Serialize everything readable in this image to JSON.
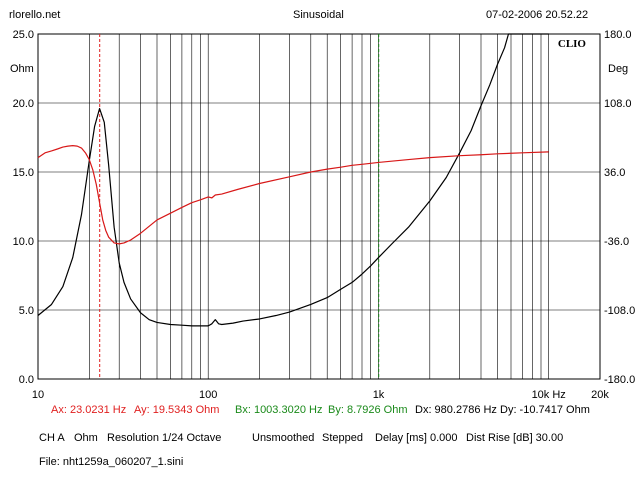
{
  "header": {
    "site": "rlorello.net",
    "mode": "Sinusoidal",
    "datetime": "07-02-2006 20.52.22"
  },
  "logo": "CLIO",
  "units": {
    "left": "Ohm",
    "right": "Deg"
  },
  "readouts": {
    "ax": "Ax: 23.0231 Hz",
    "ay": "Ay: 19.5343 Ohm",
    "bx": "Bx: 1003.3020 Hz",
    "by": "By: 8.7926 Ohm",
    "dx": "Dx: 980.2786 Hz",
    "dy": "Dy: -10.7417 Ohm"
  },
  "settings": {
    "channel": "CH A",
    "unit": "Ohm",
    "resolution": "Resolution 1/24 Octave",
    "smoothing": "Unsmoothed",
    "stepping": "Stepped",
    "delay": "Delay [ms] 0.000",
    "dist_rise": "Dist Rise [dB] 30.00"
  },
  "file": "File: nht1259a_060207_1.sini",
  "colors": {
    "impedance": "#000000",
    "phase": "#d81818",
    "cursor_a": "#e02020",
    "cursor_b": "#1a8a1a",
    "grid": "#000000"
  },
  "chart_data": {
    "type": "line",
    "x_scale": "log",
    "xlim": [
      10,
      20000
    ],
    "ylim_left": [
      0,
      25
    ],
    "ylim_right": [
      -180,
      180
    ],
    "x_ticks": [
      {
        "v": 10,
        "label": "10"
      },
      {
        "v": 100,
        "label": "100"
      },
      {
        "v": 1000,
        "label": "1k"
      },
      {
        "v": 10000,
        "label": "10k Hz"
      },
      {
        "v": 20000,
        "label": "20k"
      }
    ],
    "y_left_ticks": [
      {
        "v": 0,
        "label": "0.0"
      },
      {
        "v": 5,
        "label": "5.0"
      },
      {
        "v": 10,
        "label": "10.0"
      },
      {
        "v": 15,
        "label": "15.0"
      },
      {
        "v": 20,
        "label": "20.0"
      },
      {
        "v": 25,
        "label": "25.0"
      }
    ],
    "y_right_ticks": [
      {
        "v": -180,
        "label": "-180.0"
      },
      {
        "v": -108,
        "label": "-108.0"
      },
      {
        "v": -36,
        "label": "-36.0"
      },
      {
        "v": 36,
        "label": "36.0"
      },
      {
        "v": 108,
        "label": "108.0"
      },
      {
        "v": 180,
        "label": "180.0"
      }
    ],
    "cursors": [
      {
        "name": "A",
        "x": 23.0231
      },
      {
        "name": "B",
        "x": 1003.302
      }
    ],
    "series": [
      {
        "axis": "left",
        "points": [
          [
            10,
            4.6
          ],
          [
            12,
            5.4
          ],
          [
            14,
            6.7
          ],
          [
            16,
            8.8
          ],
          [
            18,
            11.9
          ],
          [
            20,
            15.8
          ],
          [
            21.5,
            18.3
          ],
          [
            23,
            19.6
          ],
          [
            24.5,
            18.6
          ],
          [
            26,
            15.5
          ],
          [
            28,
            11.0
          ],
          [
            30,
            8.4
          ],
          [
            32,
            7.0
          ],
          [
            35,
            5.8
          ],
          [
            40,
            4.8
          ],
          [
            45,
            4.3
          ],
          [
            50,
            4.1
          ],
          [
            60,
            3.95
          ],
          [
            70,
            3.9
          ],
          [
            80,
            3.85
          ],
          [
            90,
            3.85
          ],
          [
            100,
            3.85
          ],
          [
            105,
            4.0
          ],
          [
            110,
            4.3
          ],
          [
            115,
            4.0
          ],
          [
            120,
            3.95
          ],
          [
            140,
            4.05
          ],
          [
            160,
            4.2
          ],
          [
            200,
            4.35
          ],
          [
            250,
            4.6
          ],
          [
            300,
            4.85
          ],
          [
            400,
            5.4
          ],
          [
            500,
            5.9
          ],
          [
            600,
            6.5
          ],
          [
            700,
            7.0
          ],
          [
            800,
            7.6
          ],
          [
            900,
            8.2
          ],
          [
            1000,
            8.8
          ],
          [
            1200,
            9.8
          ],
          [
            1500,
            11.0
          ],
          [
            2000,
            12.9
          ],
          [
            2500,
            14.6
          ],
          [
            3000,
            16.4
          ],
          [
            3500,
            18.0
          ],
          [
            4000,
            19.8
          ],
          [
            4500,
            21.3
          ],
          [
            5000,
            22.8
          ],
          [
            5500,
            24.0
          ],
          [
            5800,
            25.0
          ],
          [
            10000,
            25.0
          ]
        ]
      },
      {
        "axis": "right",
        "points": [
          [
            10,
            51
          ],
          [
            11,
            56
          ],
          [
            12,
            58
          ],
          [
            13,
            60
          ],
          [
            14,
            62
          ],
          [
            15,
            63
          ],
          [
            16,
            63.5
          ],
          [
            17,
            63
          ],
          [
            18,
            61
          ],
          [
            19,
            56
          ],
          [
            20,
            49
          ],
          [
            21,
            38
          ],
          [
            22,
            23
          ],
          [
            23,
            4
          ],
          [
            24,
            -14
          ],
          [
            25,
            -25
          ],
          [
            26,
            -32
          ],
          [
            28,
            -38
          ],
          [
            30,
            -39
          ],
          [
            32,
            -38
          ],
          [
            35,
            -35
          ],
          [
            40,
            -28
          ],
          [
            50,
            -14
          ],
          [
            60,
            -7
          ],
          [
            70,
            -1
          ],
          [
            80,
            4
          ],
          [
            90,
            7
          ],
          [
            100,
            10
          ],
          [
            105,
            9
          ],
          [
            110,
            12
          ],
          [
            120,
            13
          ],
          [
            150,
            18
          ],
          [
            200,
            24
          ],
          [
            300,
            31
          ],
          [
            400,
            36
          ],
          [
            500,
            39
          ],
          [
            600,
            41
          ],
          [
            700,
            43
          ],
          [
            800,
            44
          ],
          [
            1000,
            46
          ],
          [
            1500,
            49
          ],
          [
            2000,
            51
          ],
          [
            3000,
            53
          ],
          [
            4000,
            54
          ],
          [
            5000,
            55
          ],
          [
            7000,
            56
          ],
          [
            10000,
            57
          ]
        ]
      }
    ]
  }
}
